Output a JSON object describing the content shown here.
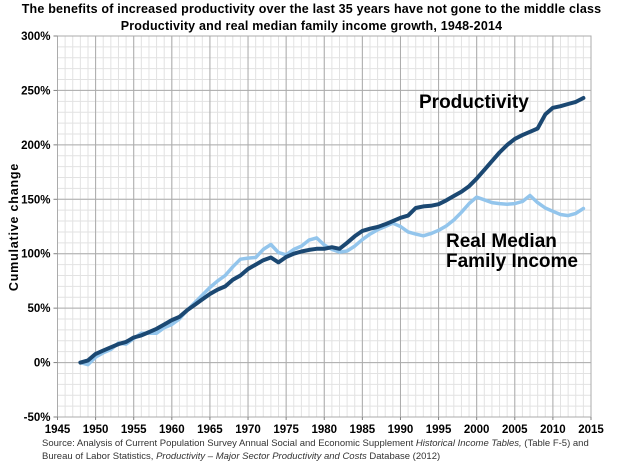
{
  "page": {
    "title": "The benefits of increased productivity over the last 35 years have not gone to the middle class",
    "subtitle": "Productivity and real median family income growth, 1948-2014",
    "y_axis_label": "Cumulative change"
  },
  "annotations": {
    "productivity": "Productivity",
    "income_line1": "Real Median",
    "income_line2": "Family Income"
  },
  "source": {
    "line1": [
      {
        "text": "Source:  Analysis of Current Population Survey Annual Social and Economic Supplement ",
        "italic": false
      },
      {
        "text": "Historical Income Tables,",
        "italic": true
      },
      {
        "text": " (Table F-5) and",
        "italic": false
      }
    ],
    "line2": [
      {
        "text": "Bureau of Labor Statistics, ",
        "italic": false
      },
      {
        "text": "Productivity – Major Sector Productivity and Costs",
        "italic": true
      },
      {
        "text": " Database (2012)",
        "italic": false
      }
    ]
  },
  "colors": {
    "productivity_line": "#1b4872",
    "income_line": "#93c5ec",
    "grid_minor": "#e2e2e2",
    "grid_major": "#ababab",
    "plot_border": "#ababab",
    "tick": "#808080",
    "text": "#000000",
    "source_text": "#333333"
  },
  "chart_data": {
    "type": "line",
    "title": "The benefits of increased productivity over the last 35 years have not gone to the middle class",
    "subtitle": "Productivity and real median family income growth, 1948-2014",
    "xlabel": "",
    "ylabel": "Cumulative change",
    "grid": true,
    "legend_position": "inline-annotations",
    "x_axis": {
      "min": 1945,
      "max": 2015,
      "tick_step": 5,
      "minor_step": 1,
      "suffix": ""
    },
    "y_axis": {
      "min": -50,
      "max": 300,
      "tick_step": 50,
      "minor_step": 10,
      "suffix": "%"
    },
    "x": [
      1948,
      1949,
      1950,
      1951,
      1952,
      1953,
      1954,
      1955,
      1956,
      1957,
      1958,
      1959,
      1960,
      1961,
      1962,
      1963,
      1964,
      1965,
      1966,
      1967,
      1968,
      1969,
      1970,
      1971,
      1972,
      1973,
      1974,
      1975,
      1976,
      1977,
      1978,
      1979,
      1980,
      1981,
      1982,
      1983,
      1984,
      1985,
      1986,
      1987,
      1988,
      1989,
      1990,
      1991,
      1992,
      1993,
      1994,
      1995,
      1996,
      1997,
      1998,
      1999,
      2000,
      2001,
      2002,
      2003,
      2004,
      2005,
      2006,
      2007,
      2008,
      2009,
      2010,
      2011,
      2012,
      2013,
      2014
    ],
    "series": [
      {
        "name": "Productivity",
        "color": "#1b4872",
        "stroke_width": 4,
        "values": [
          0,
          2,
          8,
          11,
          14,
          17,
          19,
          23,
          25,
          28,
          31,
          35,
          39,
          42,
          48,
          53,
          58,
          63,
          67,
          70,
          76,
          80,
          86,
          90,
          94,
          96.5,
          92,
          97,
          100,
          102,
          103.5,
          104.5,
          104.5,
          106,
          104.5,
          110,
          116,
          121,
          123,
          124.5,
          127,
          130,
          133,
          135,
          142,
          143.5,
          144,
          145.5,
          149,
          153,
          157,
          162,
          169,
          177,
          185,
          193,
          200,
          205.5,
          209,
          212,
          215,
          228,
          234,
          235.5,
          237.5,
          239.5,
          243
        ]
      },
      {
        "name": "Real Median Family Income",
        "color": "#93c5ec",
        "stroke_width": 3.5,
        "values": [
          0,
          -2,
          5,
          9,
          12,
          18,
          17,
          22,
          27,
          27,
          27,
          32,
          35,
          40,
          48,
          55,
          62,
          69,
          75,
          80,
          88,
          95,
          96,
          96.5,
          104,
          108.5,
          101,
          99,
          104,
          107,
          112.5,
          114.5,
          108,
          104,
          101.5,
          102.5,
          107,
          113,
          118,
          122,
          125,
          128,
          125,
          120,
          118,
          116.5,
          118.5,
          121.5,
          125.5,
          131,
          138,
          146,
          152,
          149.5,
          147,
          146,
          145.5,
          146,
          148,
          153.5,
          147,
          142,
          139,
          136,
          135,
          137,
          141.5
        ]
      }
    ]
  }
}
